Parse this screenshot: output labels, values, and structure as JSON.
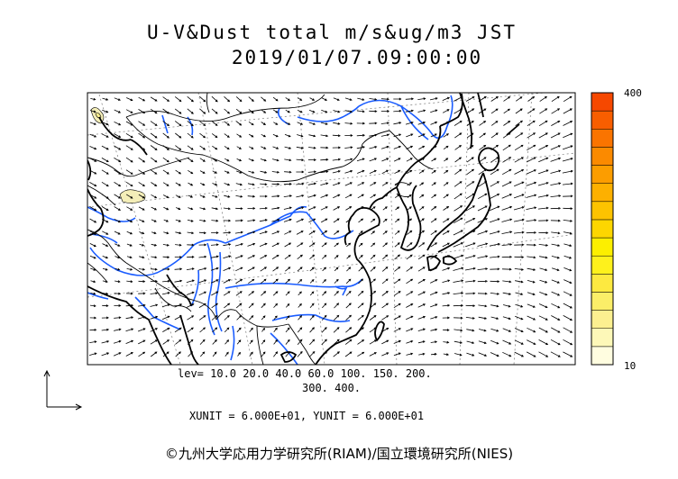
{
  "title": {
    "line1": "U-V&Dust total m/s&ug/m3 JST",
    "line2": "2019/01/07.09:00:00"
  },
  "levels": {
    "line1": "lev= 10.0 20.0 40.0 60.0 100. 150. 200.",
    "line2": "300. 400."
  },
  "units": "XUNIT = 6.000E+01, YUNIT = 6.000E+01",
  "colorbar": {
    "max_label": "400",
    "min_label": "10",
    "colors": [
      "#fffde0",
      "#fdf8b8",
      "#fcf090",
      "#fbee68",
      "#fde940",
      "#fef11c",
      "#fcef00",
      "#fdd600",
      "#fdc300",
      "#fdb000",
      "#fc9d00",
      "#fb8a00",
      "#fa7400",
      "#f85e00",
      "#f64800"
    ]
  },
  "colors": {
    "coast": "#000000",
    "rivers": "#1a5cff",
    "borders": "#000000",
    "grid": "#777777",
    "dust": "#f4eeb8"
  },
  "copyright": "©九州大学応用力学研究所(RIAM)/国立環境研究所(NIES)"
}
